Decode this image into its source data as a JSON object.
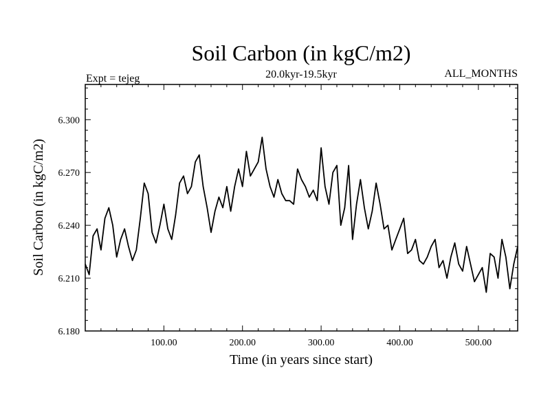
{
  "chart_data": {
    "type": "line",
    "title": "Soil Carbon (in kgC/m2)",
    "subtitle": "20.0kyr-19.5kyr",
    "left_label": "Expt = tejeg",
    "right_label": "ALL_MONTHS",
    "xlabel": "Time (in years since start)",
    "ylabel": "Soil Carbon (in kgC/m2)",
    "xlim": [
      0,
      550
    ],
    "ylim": [
      6.18,
      6.32
    ],
    "xticks": [
      100,
      200,
      300,
      400,
      500
    ],
    "xtick_labels": [
      "100.00",
      "200.00",
      "300.00",
      "400.00",
      "500.00"
    ],
    "yticks": [
      6.18,
      6.21,
      6.24,
      6.27,
      6.3
    ],
    "ytick_labels": [
      "6.180",
      "6.210",
      "6.240",
      "6.270",
      "6.300"
    ],
    "series": [
      {
        "name": "Soil Carbon",
        "x": [
          0,
          5,
          10,
          15,
          20,
          25,
          30,
          35,
          40,
          45,
          50,
          55,
          60,
          65,
          70,
          75,
          80,
          85,
          90,
          95,
          100,
          105,
          110,
          115,
          120,
          125,
          130,
          135,
          140,
          145,
          150,
          155,
          160,
          165,
          170,
          175,
          180,
          185,
          190,
          195,
          200,
          205,
          210,
          215,
          220,
          225,
          230,
          235,
          240,
          245,
          250,
          255,
          260,
          265,
          270,
          275,
          280,
          285,
          290,
          295,
          300,
          305,
          310,
          315,
          320,
          325,
          330,
          335,
          340,
          345,
          350,
          355,
          360,
          365,
          370,
          375,
          380,
          385,
          390,
          395,
          400,
          405,
          410,
          415,
          420,
          425,
          430,
          435,
          440,
          445,
          450,
          455,
          460,
          465,
          470,
          475,
          480,
          485,
          490,
          495,
          500,
          505,
          510,
          515,
          520,
          525,
          530,
          535,
          540,
          545,
          550
        ],
        "values": [
          6.218,
          6.212,
          6.234,
          6.238,
          6.226,
          6.244,
          6.25,
          6.24,
          6.222,
          6.232,
          6.238,
          6.228,
          6.22,
          6.226,
          6.244,
          6.264,
          6.258,
          6.236,
          6.23,
          6.24,
          6.252,
          6.238,
          6.232,
          6.246,
          6.264,
          6.268,
          6.258,
          6.262,
          6.276,
          6.28,
          6.262,
          6.25,
          6.236,
          6.248,
          6.256,
          6.25,
          6.262,
          6.248,
          6.262,
          6.272,
          6.262,
          6.282,
          6.268,
          6.272,
          6.276,
          6.29,
          6.272,
          6.262,
          6.256,
          6.266,
          6.258,
          6.254,
          6.254,
          6.252,
          6.272,
          6.266,
          6.262,
          6.256,
          6.26,
          6.254,
          6.284,
          6.262,
          6.252,
          6.27,
          6.274,
          6.24,
          6.25,
          6.274,
          6.232,
          6.252,
          6.266,
          6.25,
          6.238,
          6.248,
          6.264,
          6.252,
          6.238,
          6.24,
          6.226,
          6.232,
          6.238,
          6.244,
          6.224,
          6.226,
          6.232,
          6.22,
          6.218,
          6.222,
          6.228,
          6.232,
          6.216,
          6.22,
          6.21,
          6.222,
          6.23,
          6.218,
          6.214,
          6.228,
          6.218,
          6.208,
          6.212,
          6.216,
          6.202,
          6.224,
          6.222,
          6.21,
          6.232,
          6.222,
          6.204,
          6.218,
          6.228
        ]
      }
    ]
  }
}
